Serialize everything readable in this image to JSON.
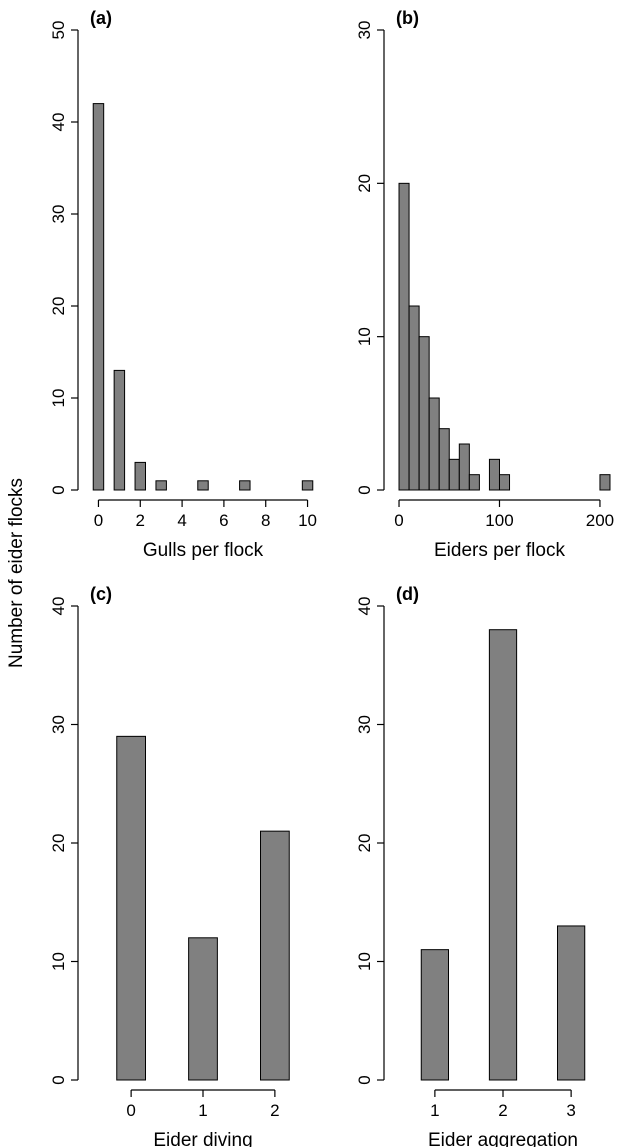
{
  "figure": {
    "shared_ylabel": "Number of eider flocks",
    "bar_color": "#808080"
  },
  "chart_data": [
    {
      "type": "bar",
      "panel_label": "(a)",
      "xlabel": "Gulls per flock",
      "ylabel": "",
      "xlim": [
        -0.5,
        10.5
      ],
      "ylim": [
        0,
        50
      ],
      "xticks": [
        0,
        2,
        4,
        6,
        8,
        10
      ],
      "yticks": [
        0,
        10,
        20,
        30,
        40,
        50
      ],
      "bar_width": 0.5,
      "bars": [
        {
          "x": 0,
          "value": 42
        },
        {
          "x": 1,
          "value": 13
        },
        {
          "x": 2,
          "value": 3
        },
        {
          "x": 3,
          "value": 1
        },
        {
          "x": 4,
          "value": 0
        },
        {
          "x": 5,
          "value": 1
        },
        {
          "x": 6,
          "value": 0
        },
        {
          "x": 7,
          "value": 1
        },
        {
          "x": 8,
          "value": 0
        },
        {
          "x": 9,
          "value": 0
        },
        {
          "x": 10,
          "value": 1
        }
      ]
    },
    {
      "type": "bar",
      "panel_label": "(b)",
      "xlabel": "Eiders per flock",
      "ylabel": "",
      "xlim": [
        -5,
        212
      ],
      "ylim": [
        0,
        30
      ],
      "xticks": [
        0,
        100,
        200
      ],
      "yticks": [
        0,
        10,
        20,
        30
      ],
      "bar_width": 10,
      "bars": [
        {
          "x": 5,
          "value": 20
        },
        {
          "x": 15,
          "value": 12
        },
        {
          "x": 25,
          "value": 10
        },
        {
          "x": 35,
          "value": 6
        },
        {
          "x": 45,
          "value": 4
        },
        {
          "x": 55,
          "value": 2
        },
        {
          "x": 65,
          "value": 3
        },
        {
          "x": 75,
          "value": 1
        },
        {
          "x": 95,
          "value": 2
        },
        {
          "x": 105,
          "value": 1
        },
        {
          "x": 205,
          "value": 1
        }
      ]
    },
    {
      "type": "bar",
      "panel_label": "(c)",
      "xlabel": "Eider diving",
      "ylabel": "",
      "xlim": [
        -0.6,
        2.6
      ],
      "ylim": [
        0,
        40
      ],
      "xticks": [
        0,
        1,
        2
      ],
      "yticks": [
        0,
        10,
        20,
        30,
        40
      ],
      "bar_width": 0.4,
      "bars": [
        {
          "x": 0,
          "value": 29
        },
        {
          "x": 1,
          "value": 12
        },
        {
          "x": 2,
          "value": 21
        }
      ]
    },
    {
      "type": "bar",
      "panel_label": "(d)",
      "xlabel": "Eider aggregation",
      "ylabel": "",
      "xlim": [
        0.4,
        3.6
      ],
      "ylim": [
        0,
        40
      ],
      "xticks": [
        1,
        2,
        3
      ],
      "yticks": [
        0,
        10,
        20,
        30,
        40
      ],
      "bar_width": 0.4,
      "bars": [
        {
          "x": 1,
          "value": 11
        },
        {
          "x": 2,
          "value": 38
        },
        {
          "x": 3,
          "value": 13
        }
      ]
    }
  ]
}
